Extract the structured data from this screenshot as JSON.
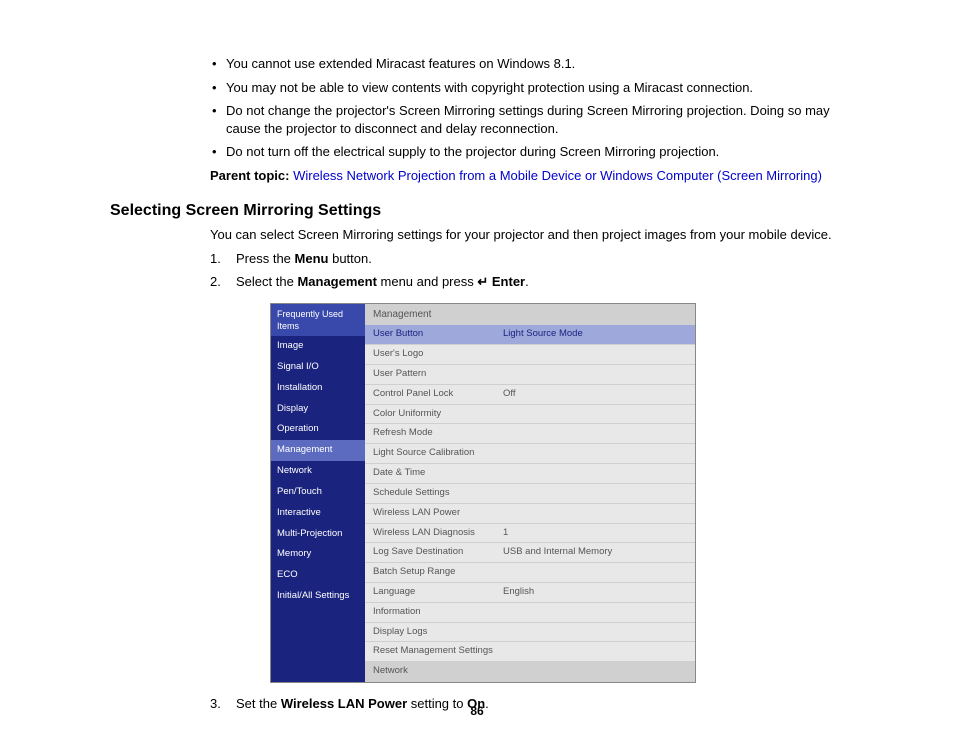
{
  "bullets": [
    "You cannot use extended Miracast features on Windows 8.1.",
    "You may not be able to view contents with copyright protection using a Miracast connection.",
    "Do not change the projector's Screen Mirroring settings during Screen Mirroring projection. Doing so may cause the projector to disconnect and delay reconnection.",
    "Do not turn off the electrical supply to the projector during Screen Mirroring projection."
  ],
  "parent_topic_label": "Parent topic:",
  "parent_topic_link": "Wireless Network Projection from a Mobile Device or Windows Computer (Screen Mirroring)",
  "heading": "Selecting Screen Mirroring Settings",
  "intro": "You can select Screen Mirroring settings for your projector and then project images from your mobile device.",
  "steps": {
    "s1_pre": "Press the ",
    "s1_bold": "Menu",
    "s1_post": " button.",
    "s2_pre": "Select the ",
    "s2_bold": "Management",
    "s2_mid": " menu and press ",
    "s2_icon": "↵",
    "s2_bold2": " Enter",
    "s2_post": ".",
    "s3_pre": "Set the ",
    "s3_bold": "Wireless LAN Power",
    "s3_mid": " setting to ",
    "s3_bold2": "On",
    "s3_post": "."
  },
  "menu": {
    "sidebar_header": "Frequently Used Items",
    "sidebar_items": [
      {
        "label": "Image",
        "active": false
      },
      {
        "label": "Signal I/O",
        "active": false
      },
      {
        "label": "Installation",
        "active": false
      },
      {
        "label": "Display",
        "active": false
      },
      {
        "label": "Operation",
        "active": false
      },
      {
        "label": "Management",
        "active": true
      },
      {
        "label": "Network",
        "active": false
      },
      {
        "label": "Pen/Touch",
        "active": false
      },
      {
        "label": "Interactive",
        "active": false
      },
      {
        "label": "Multi-Projection",
        "active": false
      },
      {
        "label": "Memory",
        "active": false
      },
      {
        "label": "ECO",
        "active": false
      },
      {
        "label": "Initial/All Settings",
        "active": false
      }
    ],
    "main_header": "Management",
    "main_rows": [
      {
        "label": "User Button",
        "value": "Light Source Mode",
        "selected": true
      },
      {
        "label": "User's Logo",
        "value": ""
      },
      {
        "label": "User Pattern",
        "value": ""
      },
      {
        "label": "Control Panel Lock",
        "value": "Off"
      },
      {
        "label": "Color Uniformity",
        "value": ""
      },
      {
        "label": "Refresh Mode",
        "value": ""
      },
      {
        "label": "Light Source Calibration",
        "value": ""
      },
      {
        "label": "Date & Time",
        "value": ""
      },
      {
        "label": "Schedule Settings",
        "value": ""
      },
      {
        "label": "Wireless LAN Power",
        "value": ""
      },
      {
        "label": "Wireless LAN Diagnosis",
        "value": "1"
      },
      {
        "label": "Log Save Destination",
        "value": "USB and Internal Memory"
      },
      {
        "label": "Batch Setup Range",
        "value": ""
      },
      {
        "label": "Language",
        "value": "English"
      },
      {
        "label": "Information",
        "value": ""
      },
      {
        "label": "Display Logs",
        "value": ""
      },
      {
        "label": "Reset Management Settings",
        "value": ""
      }
    ],
    "net_header": "Network"
  },
  "page_number": "86",
  "colors": {
    "link": "#0000cc",
    "sidebar_bg": "#1a237e",
    "sidebar_head": "#3949ab",
    "sidebar_active": "#5c6bc0",
    "main_bg": "#e8e8e8",
    "main_head_bg": "#d0d0d0",
    "row_sel_bg": "#9fa8da",
    "text": "#000000"
  }
}
